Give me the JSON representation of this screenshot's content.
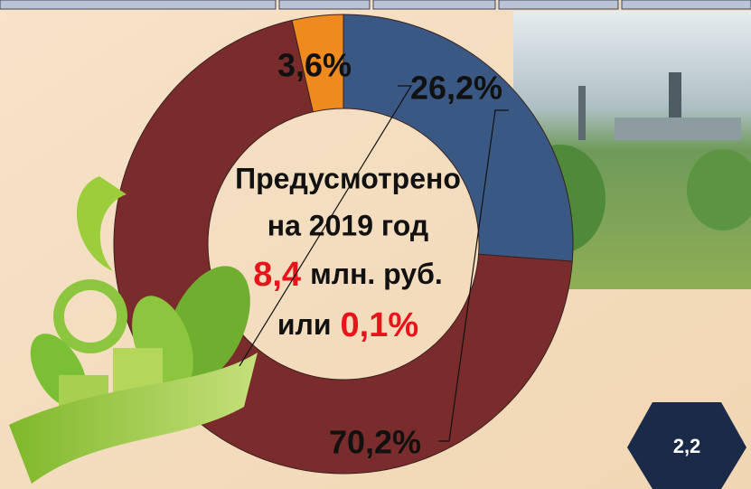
{
  "chart_data": {
    "type": "pie",
    "donut": true,
    "values": [
      26.2,
      70.2,
      3.6
    ],
    "value_labels": [
      "26,2%",
      "70,2%",
      "3,6%"
    ],
    "colors": [
      "#3a5884",
      "#7a2c2c",
      "#ee8a1e"
    ],
    "center_text": {
      "line1": "Предусмотрено",
      "line2": "на 2019 год",
      "amount": "8,4",
      "unit": "млн. руб.",
      "or": "или",
      "share": "0,1%"
    },
    "badge": "2,2"
  }
}
